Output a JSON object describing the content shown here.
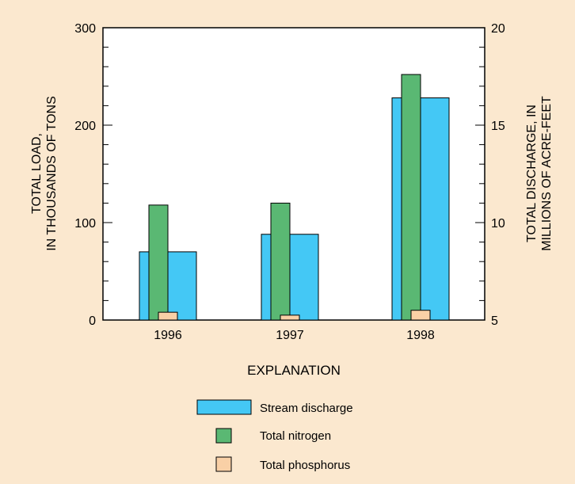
{
  "chart_data": {
    "type": "bar",
    "categories": [
      "1996",
      "1997",
      "1998"
    ],
    "left_axis": {
      "label_lines": [
        "TOTAL LOAD,",
        "IN THOUSANDS OF TONS"
      ],
      "ylim": [
        0,
        300
      ],
      "major_ticks": [
        "0",
        "100",
        "200",
        "300"
      ],
      "minor_step": 20
    },
    "right_axis": {
      "label_lines": [
        "TOTAL DISCHARGE, IN",
        "MILLIONS OF ACRE-FEET"
      ],
      "ylim": [
        5,
        20
      ],
      "major_ticks": [
        "5",
        "10",
        "15",
        "20"
      ],
      "minor_step": 1
    },
    "series": [
      {
        "name": "Stream discharge",
        "axis": "right",
        "color": "#44c8f5",
        "values": [
          8.5,
          9.4,
          16.4
        ]
      },
      {
        "name": "Total nitrogen",
        "axis": "left",
        "color": "#5ab873",
        "values": [
          118,
          120,
          252
        ]
      },
      {
        "name": "Total phosphorus",
        "axis": "left",
        "color": "#f9d0a6",
        "values": [
          8,
          5,
          10
        ]
      }
    ],
    "legend": {
      "title": "EXPLANATION",
      "placement": "bottom-center"
    },
    "grid": false
  }
}
